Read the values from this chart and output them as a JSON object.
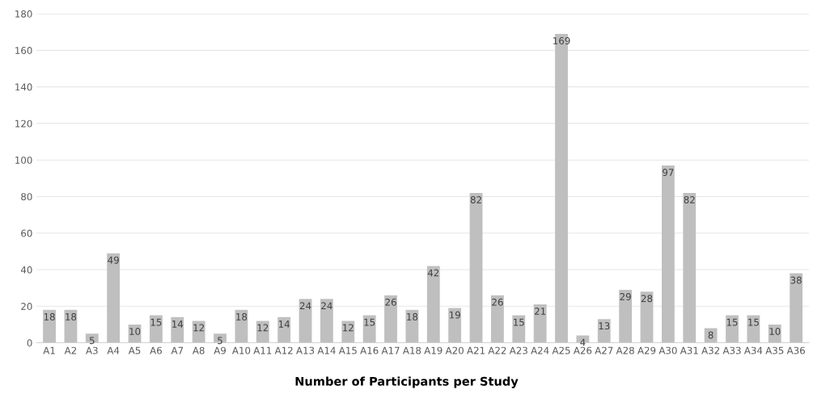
{
  "chart_data": {
    "type": "bar",
    "title": "Number of Participants per Study",
    "categories": [
      "A1",
      "A2",
      "A3",
      "A4",
      "A5",
      "A6",
      "A7",
      "A8",
      "A9",
      "A10",
      "A11",
      "A12",
      "A13",
      "A14",
      "A15",
      "A16",
      "A17",
      "A18",
      "A19",
      "A20",
      "A21",
      "A22",
      "A23",
      "A24",
      "A25",
      "A26",
      "A27",
      "A28",
      "A29",
      "A30",
      "A31",
      "A32",
      "A33",
      "A34",
      "A35",
      "A36"
    ],
    "values": [
      18,
      18,
      5,
      49,
      10,
      15,
      14,
      12,
      5,
      18,
      12,
      14,
      24,
      24,
      12,
      15,
      26,
      18,
      42,
      19,
      82,
      26,
      15,
      21,
      169,
      4,
      13,
      29,
      28,
      97,
      82,
      8,
      15,
      15,
      10,
      38
    ],
    "color": "#bfbfbf",
    "ylim": [
      0,
      180
    ],
    "yticks": [
      0,
      20,
      40,
      60,
      80,
      100,
      120,
      140,
      160,
      180
    ],
    "grid": "y",
    "data_labels": true
  }
}
